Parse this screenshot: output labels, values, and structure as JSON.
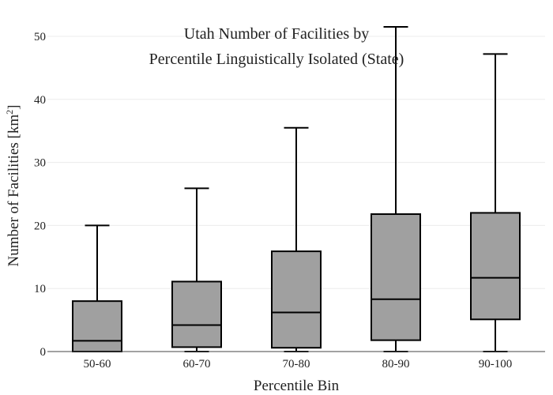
{
  "chart_data": {
    "type": "box",
    "title": [
      "Utah Number of Facilities by",
      "Percentile Linguistically Isolated (State)"
    ],
    "xlabel": "Percentile Bin",
    "ylabel": "Number of Facilities  [km",
    "ylabel_sup": "2",
    "ylabel_close": "]",
    "ylim": [
      0,
      50
    ],
    "yticks": [
      0,
      10,
      20,
      30,
      40,
      50
    ],
    "grid": true,
    "box_color": "#a0a0a0",
    "line_color": "#000000",
    "categories": [
      "50-60",
      "60-70",
      "70-80",
      "80-90",
      "90-100"
    ],
    "boxes": [
      {
        "min": 0,
        "q1": 0,
        "median": 1.7,
        "q3": 8.0,
        "max": 20.0
      },
      {
        "min": 0,
        "q1": 0.7,
        "median": 4.2,
        "q3": 11.1,
        "max": 25.9
      },
      {
        "min": 0,
        "q1": 0.6,
        "median": 6.2,
        "q3": 15.9,
        "max": 35.5
      },
      {
        "min": 0,
        "q1": 1.8,
        "median": 8.3,
        "q3": 21.8,
        "max": 51.5
      },
      {
        "min": 0,
        "q1": 5.1,
        "median": 11.7,
        "q3": 22.0,
        "max": 47.2
      }
    ]
  }
}
